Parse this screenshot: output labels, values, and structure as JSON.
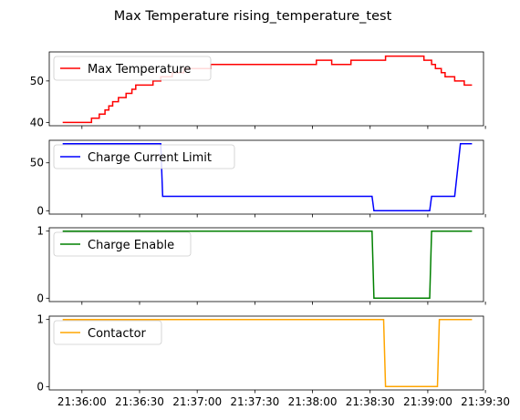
{
  "title": "Max Temperature rising_temperature_test",
  "chart_data": [
    {
      "type": "line",
      "legend_placement": "upper-left",
      "grid": false,
      "series": [
        {
          "name": "Max Temperature",
          "color": "#ff0000",
          "points": [
            [
              "21:35:50",
              40
            ],
            [
              "21:36:05",
              40
            ],
            [
              "21:36:05",
              41
            ],
            [
              "21:36:09",
              41
            ],
            [
              "21:36:09",
              42
            ],
            [
              "21:36:12",
              42
            ],
            [
              "21:36:12",
              43
            ],
            [
              "21:36:14",
              43
            ],
            [
              "21:36:14",
              44
            ],
            [
              "21:36:16",
              44
            ],
            [
              "21:36:16",
              45
            ],
            [
              "21:36:19",
              45
            ],
            [
              "21:36:19",
              46
            ],
            [
              "21:36:23",
              46
            ],
            [
              "21:36:23",
              47
            ],
            [
              "21:36:26",
              47
            ],
            [
              "21:36:26",
              48
            ],
            [
              "21:36:28",
              48
            ],
            [
              "21:36:28",
              49
            ],
            [
              "21:36:37",
              49
            ],
            [
              "21:36:37",
              50
            ],
            [
              "21:36:41",
              50
            ],
            [
              "21:36:41",
              51
            ],
            [
              "21:36:47",
              51
            ],
            [
              "21:36:47",
              52
            ],
            [
              "21:36:53",
              52
            ],
            [
              "21:36:53",
              53
            ],
            [
              "21:37:07",
              53
            ],
            [
              "21:37:07",
              54
            ],
            [
              "21:38:02",
              54
            ],
            [
              "21:38:02",
              55
            ],
            [
              "21:38:10",
              55
            ],
            [
              "21:38:10",
              54
            ],
            [
              "21:38:20",
              54
            ],
            [
              "21:38:20",
              55
            ],
            [
              "21:38:38",
              55
            ],
            [
              "21:38:38",
              56
            ],
            [
              "21:38:58",
              56
            ],
            [
              "21:38:58",
              55
            ],
            [
              "21:39:02",
              55
            ],
            [
              "21:39:02",
              54
            ],
            [
              "21:39:04",
              54
            ],
            [
              "21:39:04",
              53
            ],
            [
              "21:39:07",
              53
            ],
            [
              "21:39:07",
              52
            ],
            [
              "21:39:09",
              52
            ],
            [
              "21:39:09",
              51
            ],
            [
              "21:39:14",
              51
            ],
            [
              "21:39:14",
              50
            ],
            [
              "21:39:19",
              50
            ],
            [
              "21:39:19",
              49
            ],
            [
              "21:39:23",
              49
            ]
          ]
        }
      ],
      "ylim": [
        39.2,
        57
      ],
      "yticks": [
        40,
        50
      ],
      "xlim": [
        "21:35:43",
        "21:39:29"
      ]
    },
    {
      "type": "line",
      "legend_placement": "upper-left",
      "grid": false,
      "series": [
        {
          "name": "Charge Current Limit",
          "color": "#0000ff",
          "points": [
            [
              "21:35:50",
              70
            ],
            [
              "21:36:41",
              70
            ],
            [
              "21:36:42",
              15
            ],
            [
              "21:38:31",
              15
            ],
            [
              "21:38:32",
              0
            ],
            [
              "21:39:01",
              0
            ],
            [
              "21:39:02",
              15
            ],
            [
              "21:39:14",
              15
            ],
            [
              "21:39:17",
              70
            ],
            [
              "21:39:23",
              70
            ]
          ]
        }
      ],
      "ylim": [
        -3.5,
        73.5
      ],
      "yticks": [
        0,
        50
      ],
      "xlim": [
        "21:35:43",
        "21:39:29"
      ]
    },
    {
      "type": "line",
      "legend_placement": "upper-left",
      "grid": false,
      "series": [
        {
          "name": "Charge Enable",
          "color": "#008000",
          "points": [
            [
              "21:35:50",
              1
            ],
            [
              "21:38:31",
              1
            ],
            [
              "21:38:32",
              0
            ],
            [
              "21:39:01",
              0
            ],
            [
              "21:39:02",
              1
            ],
            [
              "21:39:23",
              1
            ]
          ]
        }
      ],
      "ylim": [
        -0.05,
        1.05
      ],
      "yticks": [
        0,
        1
      ],
      "xlim": [
        "21:35:43",
        "21:39:29"
      ]
    },
    {
      "type": "line",
      "legend_placement": "upper-left",
      "grid": false,
      "series": [
        {
          "name": "Contactor",
          "color": "#ffa500",
          "points": [
            [
              "21:35:50",
              1
            ],
            [
              "21:38:37",
              1
            ],
            [
              "21:38:38",
              0
            ],
            [
              "21:39:05",
              0
            ],
            [
              "21:39:06",
              1
            ],
            [
              "21:39:23",
              1
            ]
          ]
        }
      ],
      "ylim": [
        -0.05,
        1.05
      ],
      "yticks": [
        0,
        1
      ],
      "xlim": [
        "21:35:43",
        "21:39:29"
      ],
      "xticks": [
        "21:36:00",
        "21:36:30",
        "21:37:00",
        "21:37:30",
        "21:38:00",
        "21:38:30",
        "21:39:00",
        "21:39:30"
      ]
    }
  ]
}
